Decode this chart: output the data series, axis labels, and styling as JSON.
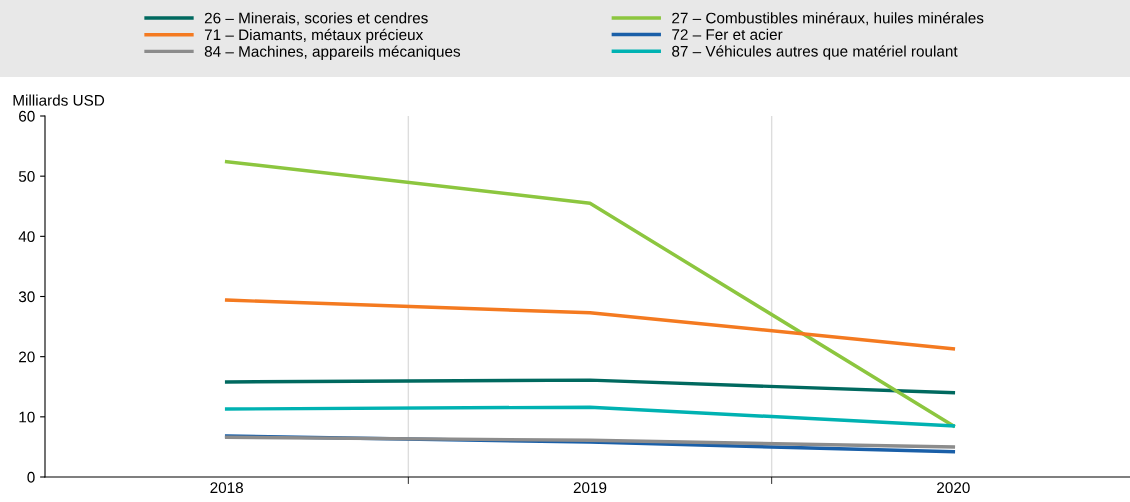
{
  "chart_data": {
    "type": "line",
    "ylabel": "Milliards USD",
    "categories": [
      "2018",
      "2019",
      "2020"
    ],
    "series": [
      {
        "name": "26 – Minerais, scories et cendres",
        "color": "#00695f",
        "values": [
          15.8,
          16.1,
          14.0
        ]
      },
      {
        "name": "27 – Combustibles minéraux, huiles minérales",
        "color": "#8cc63f",
        "values": [
          52.4,
          45.5,
          8.5
        ]
      },
      {
        "name": "71 – Diamants, métaux précieux",
        "color": "#f47a20",
        "values": [
          29.4,
          27.3,
          21.3
        ]
      },
      {
        "name": "72 – Fer et acier",
        "color": "#1a5fa8",
        "values": [
          6.8,
          5.8,
          4.2
        ]
      },
      {
        "name": "84 – Machines, appareils mécaniques",
        "color": "#8c8c8c",
        "values": [
          6.6,
          6.1,
          5.0
        ]
      },
      {
        "name": "87 – Véhicules autres que matériel roulant",
        "color": "#00b2b2",
        "values": [
          11.3,
          11.6,
          8.5
        ]
      }
    ],
    "ylim": [
      0,
      60
    ],
    "yticks": [
      0,
      10,
      20,
      30,
      40,
      50,
      60
    ],
    "grid": "x",
    "legend": "top",
    "marker": "none",
    "line_style": "solid"
  }
}
